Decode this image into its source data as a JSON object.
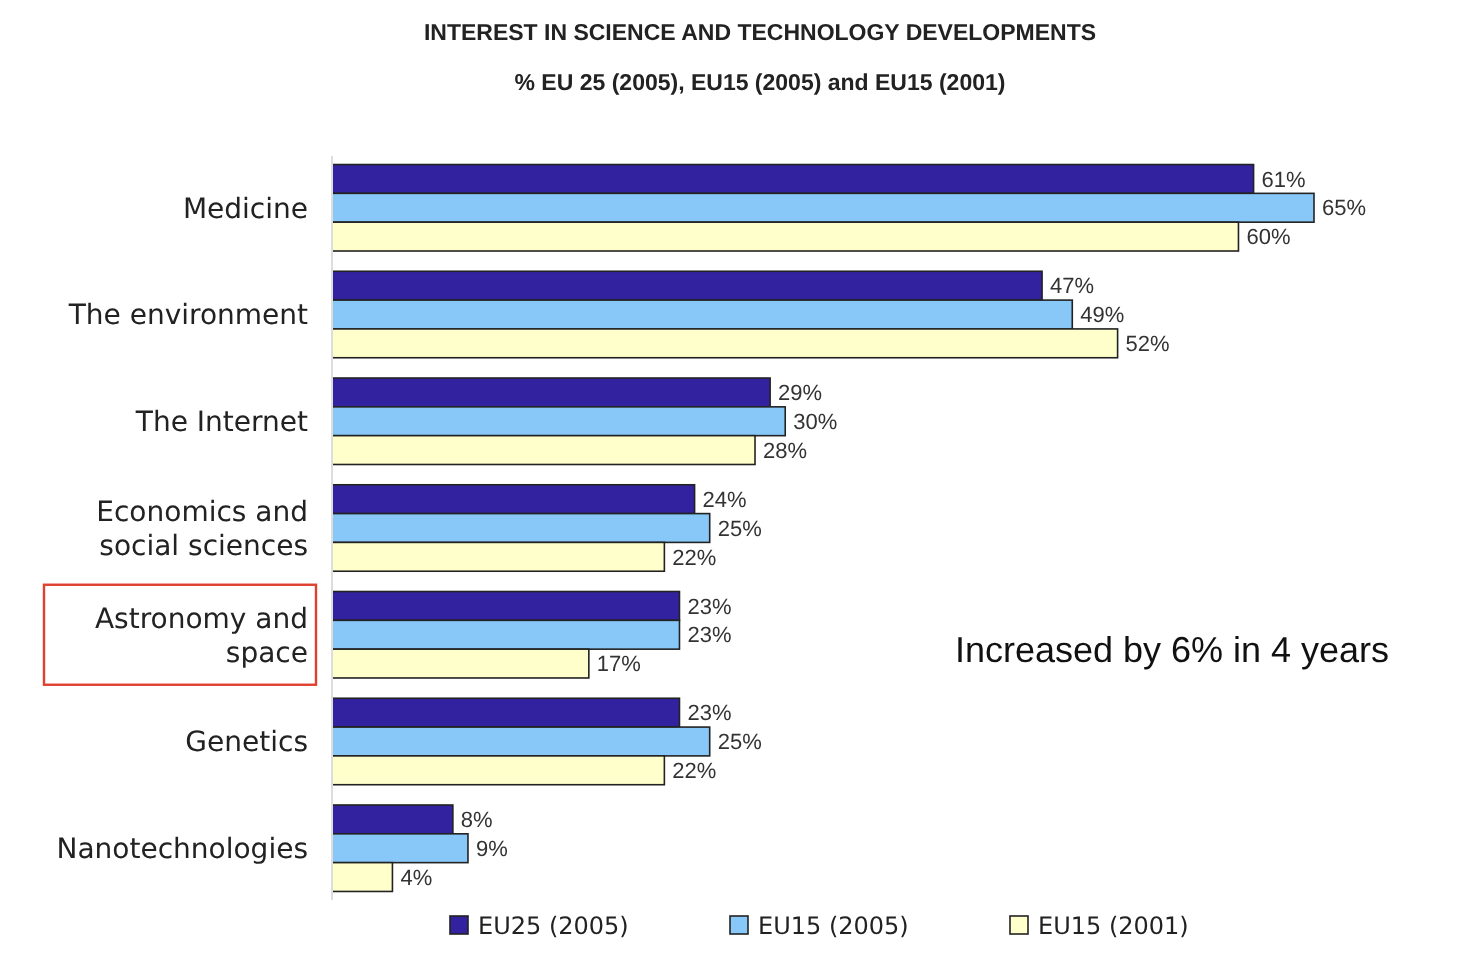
{
  "chart_data": {
    "type": "bar",
    "orientation": "horizontal",
    "title": "INTEREST IN SCIENCE AND TECHNOLOGY DEVELOPMENTS",
    "subtitle": "% EU 25 (2005), EU15 (2005) and EU15 (2001)",
    "categories": [
      "Medicine",
      "The environment",
      "The Internet",
      "Economics and social sciences",
      "Astronomy and space",
      "Genetics",
      "Nanotechnologies"
    ],
    "series": [
      {
        "name": "EU25 (2005)",
        "color": "#3322a0",
        "values": [
          61,
          47,
          29,
          24,
          23,
          23,
          8
        ],
        "value_labels": [
          "61%",
          "47%",
          "29%",
          "24%",
          "23%",
          "23%",
          "8%"
        ]
      },
      {
        "name": "EU15 (2005)",
        "color": "#88c8f8",
        "values": [
          65,
          49,
          30,
          25,
          23,
          25,
          9
        ],
        "value_labels": [
          "65%",
          "49%",
          "30%",
          "25%",
          "23%",
          "25%",
          "9%"
        ]
      },
      {
        "name": "EU15 (2001)",
        "color": "#ffffcc",
        "values": [
          60,
          52,
          28,
          22,
          17,
          22,
          4
        ],
        "value_labels": [
          "60%",
          "52%",
          "28%",
          "22%",
          "17%",
          "22%",
          "4%"
        ]
      }
    ],
    "legend": "bottom",
    "grid": false,
    "annotations": [
      "Increased by 6% in 4 years"
    ]
  }
}
